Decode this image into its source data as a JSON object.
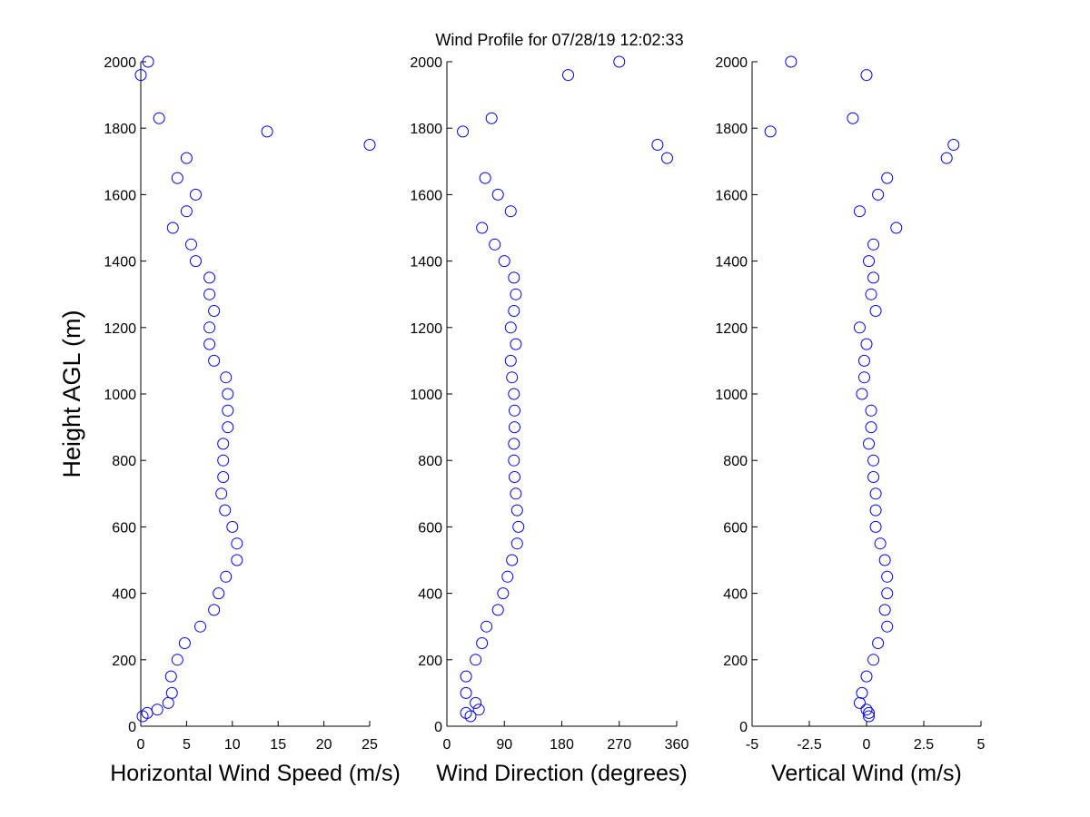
{
  "title": "Wind Profile for  07/28/19 12:02:33",
  "chart_data": [
    {
      "type": "scatter",
      "ylabel": "Height AGL (m)",
      "xlabel": "Horizontal Wind Speed (m/s)",
      "color": "#0000ff",
      "xlim": [
        0,
        25
      ],
      "xticks": [
        0,
        5,
        10,
        15,
        20,
        25
      ],
      "ylim": [
        0,
        2000
      ],
      "yticks": [
        0,
        200,
        400,
        600,
        800,
        1000,
        1200,
        1400,
        1600,
        1800,
        2000
      ],
      "y": [
        30,
        40,
        50,
        70,
        100,
        150,
        200,
        250,
        300,
        350,
        400,
        450,
        500,
        550,
        600,
        650,
        700,
        750,
        800,
        850,
        900,
        950,
        1000,
        1050,
        1100,
        1150,
        1200,
        1250,
        1300,
        1350,
        1400,
        1450,
        1500,
        1550,
        1600,
        1650,
        1710,
        1750,
        1790,
        1830,
        1960,
        2000
      ],
      "x": [
        0.2,
        0.7,
        1.8,
        3,
        3.4,
        3.3,
        4,
        4.8,
        6.5,
        8,
        8.5,
        9.3,
        10.5,
        10.5,
        10,
        9.2,
        8.8,
        9,
        9,
        9,
        9.5,
        9.5,
        9.5,
        9.3,
        8,
        7.5,
        7.5,
        8,
        7.5,
        7.5,
        6,
        5.5,
        3.5,
        5,
        6,
        4,
        5,
        25,
        13.8,
        2,
        0,
        0.8
      ]
    },
    {
      "type": "scatter",
      "xlabel": "Wind Direction (degrees)",
      "color": "#0000ff",
      "xlim": [
        0,
        360
      ],
      "xticks": [
        0,
        90,
        180,
        270,
        360
      ],
      "ylim": [
        0,
        2000
      ],
      "yticks": [
        0,
        200,
        400,
        600,
        800,
        1000,
        1200,
        1400,
        1600,
        1800,
        2000
      ],
      "y": [
        30,
        40,
        50,
        70,
        100,
        150,
        200,
        250,
        300,
        350,
        400,
        450,
        500,
        550,
        600,
        650,
        700,
        750,
        800,
        850,
        900,
        950,
        1000,
        1050,
        1100,
        1150,
        1200,
        1250,
        1300,
        1350,
        1400,
        1450,
        1500,
        1550,
        1600,
        1650,
        1710,
        1750,
        1790,
        1830,
        1960,
        2000
      ],
      "x": [
        37,
        30,
        50,
        45,
        30,
        30,
        45,
        55,
        62,
        80,
        88,
        95,
        102,
        110,
        112,
        110,
        108,
        106,
        105,
        105,
        106,
        106,
        105,
        102,
        100,
        108,
        100,
        105,
        108,
        105,
        90,
        75,
        55,
        100,
        80,
        60,
        345,
        330,
        25,
        70,
        190,
        270
      ]
    },
    {
      "type": "scatter",
      "xlabel": "Vertical Wind (m/s)",
      "color": "#0000ff",
      "xlim": [
        -5,
        5
      ],
      "xticks": [
        -5,
        -2.5,
        0,
        2.5,
        5
      ],
      "ylim": [
        0,
        2000
      ],
      "yticks": [
        0,
        200,
        400,
        600,
        800,
        1000,
        1200,
        1400,
        1600,
        1800,
        2000
      ],
      "y": [
        30,
        40,
        50,
        70,
        100,
        150,
        200,
        250,
        300,
        350,
        400,
        450,
        500,
        550,
        600,
        650,
        700,
        750,
        800,
        850,
        900,
        950,
        1000,
        1050,
        1100,
        1150,
        1200,
        1250,
        1300,
        1350,
        1400,
        1450,
        1500,
        1550,
        1600,
        1650,
        1710,
        1750,
        1790,
        1830,
        1960,
        2000
      ],
      "x": [
        0.1,
        0.1,
        0,
        -0.3,
        -0.2,
        0,
        0.3,
        0.5,
        0.9,
        0.8,
        0.9,
        0.9,
        0.8,
        0.6,
        0.4,
        0.4,
        0.4,
        0.3,
        0.3,
        0.1,
        0.2,
        0.2,
        -0.2,
        -0.1,
        -0.1,
        0,
        -0.3,
        0.4,
        0.2,
        0.3,
        0.1,
        0.3,
        1.3,
        -0.3,
        0.5,
        0.9,
        3.5,
        3.8,
        -4.2,
        -0.6,
        0,
        -3.3
      ]
    }
  ]
}
